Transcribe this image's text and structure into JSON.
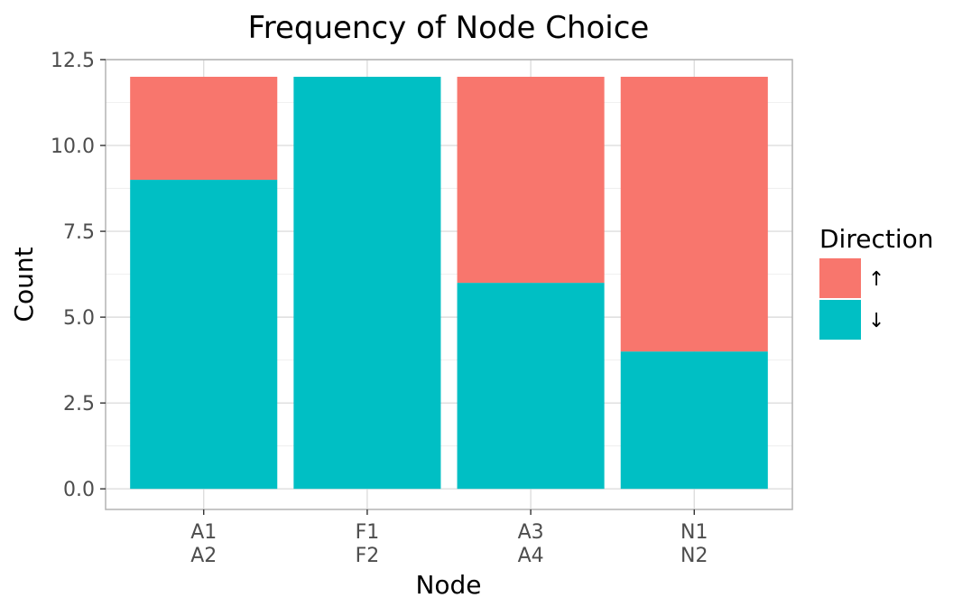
{
  "chart_data": {
    "type": "bar",
    "stacked": true,
    "title": "Frequency of  Node Choice",
    "xlabel": "Node",
    "ylabel": "Count",
    "ylim": [
      -0.6,
      12.5
    ],
    "yticks": [
      0.0,
      2.5,
      5.0,
      7.5,
      10.0,
      12.5
    ],
    "ytick_labels": [
      "0.0",
      "2.5",
      "5.0",
      "7.5",
      "10.0",
      "12.5"
    ],
    "grid": true,
    "categories": [
      [
        "A1",
        "A2"
      ],
      [
        "F1",
        "F2"
      ],
      [
        "A3",
        "A4"
      ],
      [
        "N1",
        "N2"
      ]
    ],
    "series": [
      {
        "name": "↓",
        "color": "#00BFC4",
        "values": [
          9,
          12,
          6,
          4
        ]
      },
      {
        "name": "↑",
        "color": "#F8766D",
        "values": [
          3,
          0,
          6,
          8
        ]
      }
    ],
    "legend": {
      "title": "Direction",
      "position": "right",
      "entries": [
        {
          "label": "↑",
          "color": "#F8766D"
        },
        {
          "label": "↓",
          "color": "#00BFC4"
        }
      ]
    }
  }
}
